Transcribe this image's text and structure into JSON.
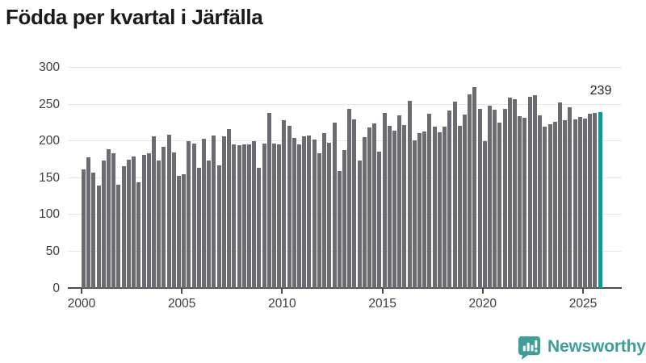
{
  "title": "Födda per kvartal i Järfälla",
  "annotation": {
    "last_value_label": "239"
  },
  "logo": {
    "text": "Newsworthy",
    "icon": "newsworthy-speech-bubble-chart-icon"
  },
  "colors": {
    "bar": "#6d6b71",
    "highlight": "#009e96",
    "grid": "#e7e7e7",
    "axis": "#4d4d4d",
    "title_text": "#1a1a1a",
    "tick_text": "#3d3d3d",
    "logo_teal": "#3f9e98"
  },
  "chart_data": {
    "type": "bar",
    "title": "Födda per kvartal i Järfälla",
    "xlabel": "",
    "ylabel": "",
    "ylim": [
      0,
      300
    ],
    "yticks": [
      0,
      50,
      100,
      150,
      200,
      250,
      300
    ],
    "xticks": [
      2000,
      2005,
      2010,
      2015,
      2020,
      2025
    ],
    "grid": "horizontal",
    "legend": "none",
    "bar_period": "quarter",
    "first_period": "2000-Q1",
    "last_period": "2025-Q4",
    "highlight_last_bar": true,
    "last_bar_label": "239",
    "values_by_year": {
      "2000": [
        161,
        178,
        157,
        139
      ],
      "2001": [
        173,
        189,
        183,
        140
      ],
      "2002": [
        166,
        174,
        179,
        144
      ],
      "2003": [
        181,
        183,
        206,
        173
      ],
      "2004": [
        192,
        209,
        184,
        153
      ],
      "2005": [
        155,
        200,
        196,
        164
      ],
      "2006": [
        203,
        173,
        207,
        167
      ],
      "2007": [
        206,
        216,
        195,
        194
      ],
      "2008": [
        195,
        195,
        200,
        164
      ],
      "2009": [
        197,
        238,
        197,
        195
      ],
      "2010": [
        228,
        221,
        204,
        195
      ],
      "2011": [
        206,
        207,
        202,
        183
      ],
      "2012": [
        211,
        198,
        225,
        159
      ],
      "2013": [
        188,
        244,
        229,
        173
      ],
      "2014": [
        205,
        218,
        224,
        186
      ],
      "2015": [
        238,
        221,
        214,
        235
      ],
      "2016": [
        222,
        255,
        201,
        211
      ],
      "2017": [
        213,
        237,
        220,
        212
      ],
      "2018": [
        220,
        241,
        254,
        221
      ],
      "2019": [
        236,
        263,
        273,
        244
      ],
      "2020": [
        200,
        248,
        243,
        225
      ],
      "2021": [
        244,
        259,
        257,
        234
      ],
      "2022": [
        232,
        260,
        262,
        235
      ],
      "2023": [
        220,
        223,
        226,
        253
      ],
      "2024": [
        228,
        246,
        229,
        233
      ],
      "2025": [
        231,
        237,
        238,
        239
      ]
    }
  }
}
